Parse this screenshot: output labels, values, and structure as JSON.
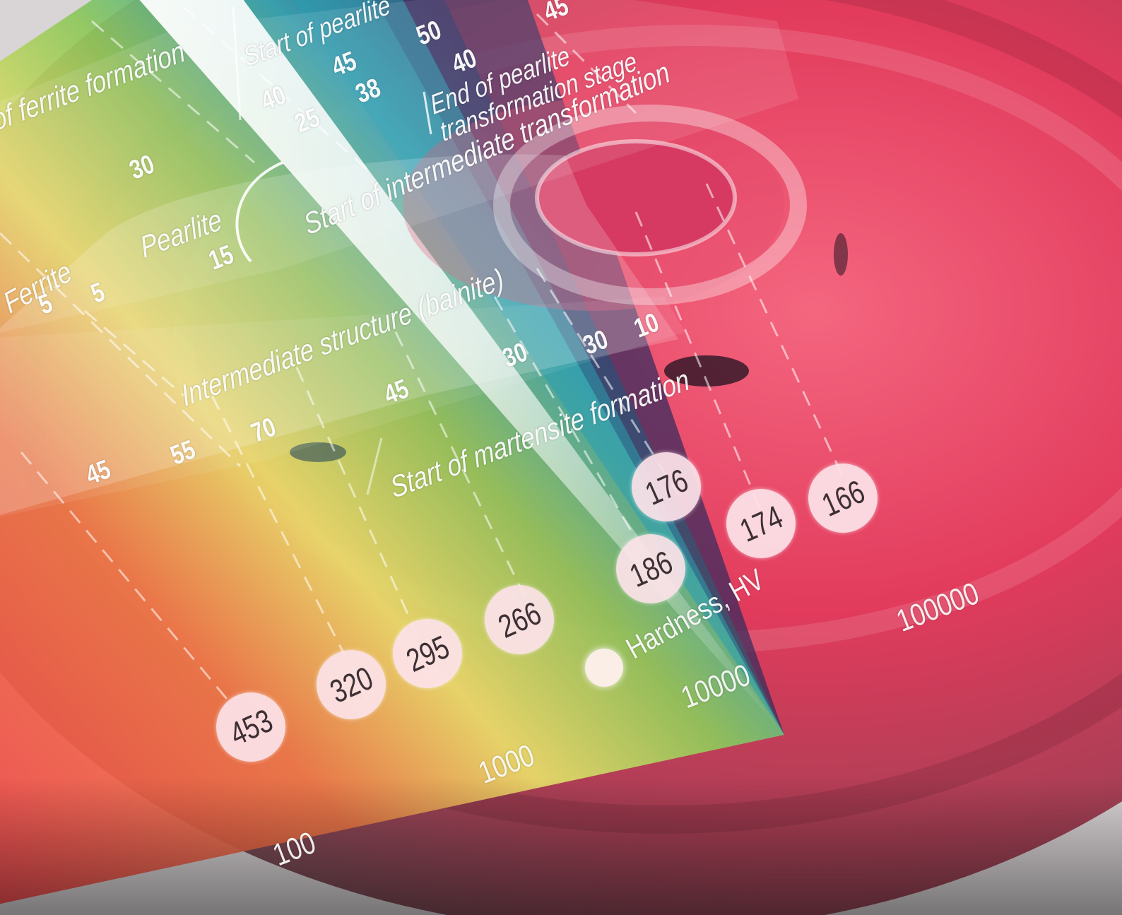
{
  "phases": {
    "ferrite_start": "of ferrite formation",
    "pearlite_start": "Start of pearlite",
    "pearlite_end_1": "End of pearlite",
    "pearlite_end_2": "transformation stage",
    "intermediate_start": "Start of  intermediate transformation",
    "pearlite": "Pearlite",
    "ferrite": "Ferrite",
    "bainite": "Intermediate structure (bainite)",
    "martensite_start": "Start of martensite formation"
  },
  "percentages": [
    "50",
    "45",
    "45",
    "40",
    "40",
    "38",
    "25",
    "30",
    "15",
    "5",
    "5",
    "30",
    "30",
    "10",
    "45",
    "70",
    "55",
    "45"
  ],
  "time_axis": [
    "100",
    "1000",
    "10000",
    "100000"
  ],
  "hardness": {
    "title": "Hardness, HV",
    "values": [
      "453",
      "320",
      "295",
      "266",
      "186",
      "176",
      "174",
      "166"
    ]
  },
  "colors": {
    "red": "#e8384a",
    "magenta": "#d42a6a",
    "yellow": "#e9e06a",
    "green": "#9ecb4e",
    "cyan": "#2ea6b4",
    "purple": "#5a2e6a",
    "bubble": "#fce2e8"
  }
}
